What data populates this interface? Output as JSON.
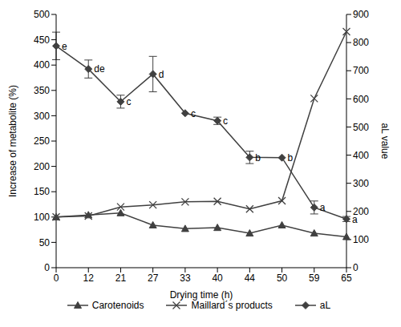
{
  "chart_data": {
    "type": "line",
    "x_label": "Drying time (h)",
    "y_label": "Increase of metabolite (%)",
    "y2_label": "aL value",
    "categories": [
      "0",
      "12",
      "21",
      "27",
      "33",
      "40",
      "44",
      "50",
      "59",
      "65"
    ],
    "ylim": [
      0,
      500
    ],
    "yticks": [
      0,
      50,
      100,
      150,
      200,
      250,
      300,
      350,
      400,
      450,
      500
    ],
    "y2lim": [
      0,
      900
    ],
    "y2ticks": [
      0,
      100,
      200,
      300,
      400,
      500,
      600,
      700,
      800,
      900
    ],
    "grid": false,
    "legend": "bottom",
    "series": [
      {
        "name": "Carotenoids",
        "color": "#404040",
        "marker": "triangle",
        "values": [
          100,
          104,
          108,
          84,
          77,
          79,
          68,
          84,
          68,
          61
        ]
      },
      {
        "name": "Maillard´s products",
        "color": "#404040",
        "marker": "x",
        "values": [
          100,
          102,
          120,
          124,
          130,
          131,
          116,
          132,
          334,
          466
        ]
      },
      {
        "name": "aL",
        "color": "#404040",
        "marker": "diamond",
        "axis": "y2",
        "values": [
          788,
          706,
          590,
          688,
          549,
          522,
          392,
          391,
          214,
          173
        ],
        "errors": [
          49,
          32,
          23,
          63,
          0,
          13,
          22,
          0,
          23,
          9
        ],
        "point_labels": [
          "e",
          "de",
          "c",
          "d",
          "c",
          "c",
          "b",
          "b",
          "a",
          "a"
        ]
      }
    ]
  }
}
